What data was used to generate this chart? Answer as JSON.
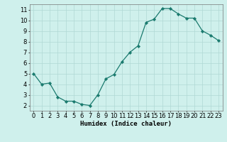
{
  "x": [
    0,
    1,
    2,
    3,
    4,
    5,
    6,
    7,
    8,
    9,
    10,
    11,
    12,
    13,
    14,
    15,
    16,
    17,
    18,
    19,
    20,
    21,
    22,
    23
  ],
  "y": [
    5.0,
    4.0,
    4.1,
    2.8,
    2.4,
    2.4,
    2.1,
    2.0,
    3.0,
    4.5,
    4.9,
    6.1,
    7.0,
    7.6,
    9.8,
    10.1,
    11.1,
    11.1,
    10.6,
    10.2,
    10.2,
    9.0,
    8.6,
    8.1
  ],
  "line_color": "#1a7a6e",
  "marker": "D",
  "marker_size": 2.2,
  "bg_color": "#cff0ec",
  "grid_color": "#b0d8d4",
  "xlabel": "Humidex (Indice chaleur)",
  "xlim": [
    -0.5,
    23.5
  ],
  "ylim": [
    1.5,
    11.5
  ],
  "yticks": [
    2,
    3,
    4,
    5,
    6,
    7,
    8,
    9,
    10,
    11
  ],
  "xticks": [
    0,
    1,
    2,
    3,
    4,
    5,
    6,
    7,
    8,
    9,
    10,
    11,
    12,
    13,
    14,
    15,
    16,
    17,
    18,
    19,
    20,
    21,
    22,
    23
  ],
  "label_fontsize": 6.5,
  "tick_fontsize": 6.0,
  "linewidth": 0.9
}
